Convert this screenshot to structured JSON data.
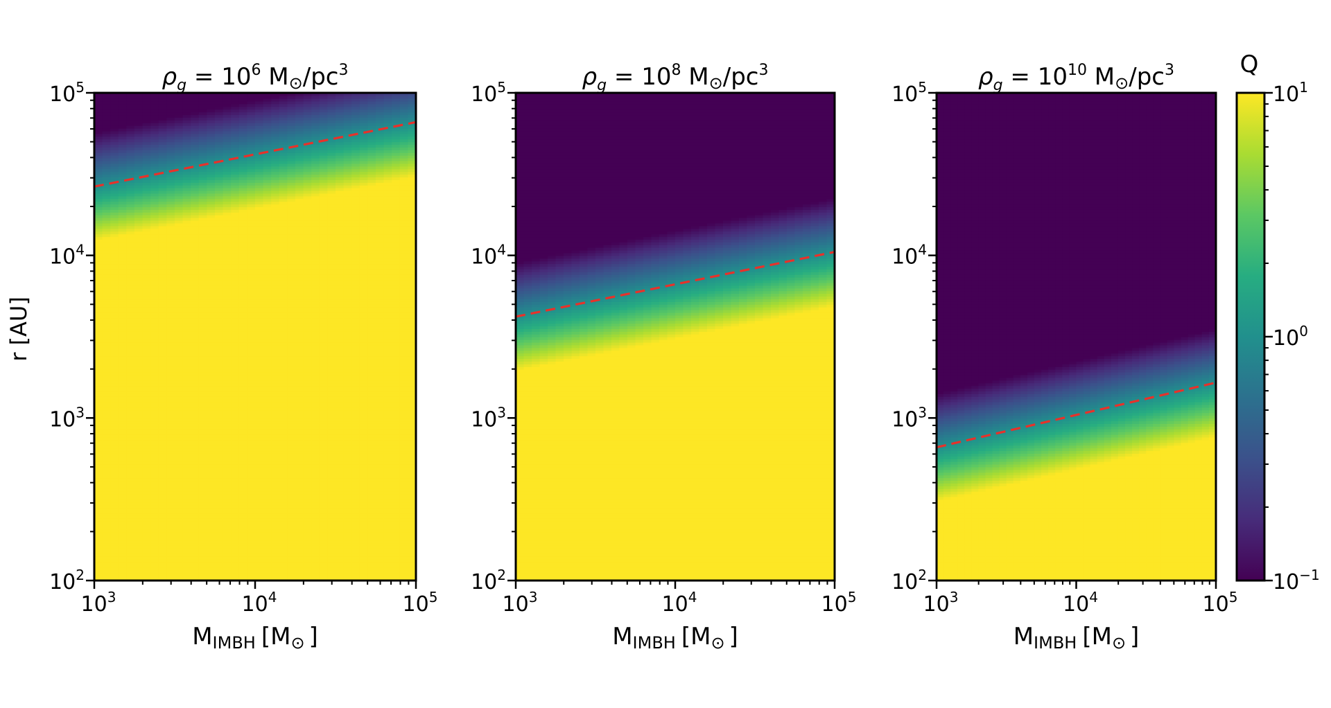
{
  "chart_data": {
    "type": "heatmap",
    "xlabel": {
      "main": "M",
      "sub": "IMBH",
      "unit": "[M",
      "sun": "⊙",
      "close": "]"
    },
    "ylabel": "r [AU]",
    "xscale": "log",
    "yscale": "log",
    "xlim": [
      1000,
      100000
    ],
    "ylim": [
      100,
      100000
    ],
    "x_ticks": [
      {
        "base": "10",
        "exp": "3",
        "value": 1000
      },
      {
        "base": "10",
        "exp": "4",
        "value": 10000
      },
      {
        "base": "10",
        "exp": "5",
        "value": 100000
      }
    ],
    "y_ticks": [
      {
        "base": "10",
        "exp": "2",
        "value": 100
      },
      {
        "base": "10",
        "exp": "3",
        "value": 1000
      },
      {
        "base": "10",
        "exp": "4",
        "value": 10000
      },
      {
        "base": "10",
        "exp": "5",
        "value": 100000
      }
    ],
    "colorbar": {
      "label": "Q",
      "scale": "log",
      "range": [
        0.1,
        10
      ],
      "colormap": "viridis",
      "ticks": [
        {
          "base": "10",
          "exp": "1",
          "value": 10
        },
        {
          "base": "10",
          "exp": "0",
          "value": 1
        },
        {
          "base": "10",
          "exp": "−1",
          "value": 0.1
        }
      ]
    },
    "line_color": "#e8312a",
    "panels": [
      {
        "title": {
          "rho": "ρ",
          "g": "g",
          "eq": " = 10",
          "exp": "6",
          "unit": " M",
          "sun": "⊙",
          "rest": "/pc",
          "exp2": "3"
        },
        "rho_g": 1000000,
        "q1_line": [
          {
            "x": 1000,
            "y": 26500
          },
          {
            "x": 100000,
            "y": 66000
          }
        ]
      },
      {
        "title": {
          "rho": "ρ",
          "g": "g",
          "eq": " = 10",
          "exp": "8",
          "unit": " M",
          "sun": "⊙",
          "rest": "/pc",
          "exp2": "3"
        },
        "rho_g": 100000000,
        "q1_line": [
          {
            "x": 1000,
            "y": 4200
          },
          {
            "x": 100000,
            "y": 10500
          }
        ]
      },
      {
        "title": {
          "rho": "ρ",
          "g": "g",
          "eq": " = 10",
          "exp": "10",
          "unit": " M",
          "sun": "⊙",
          "rest": "/pc",
          "exp2": "3"
        },
        "rho_g": 10000000000,
        "q1_line": [
          {
            "x": 1000,
            "y": 660
          },
          {
            "x": 100000,
            "y": 1650
          }
        ]
      }
    ]
  }
}
